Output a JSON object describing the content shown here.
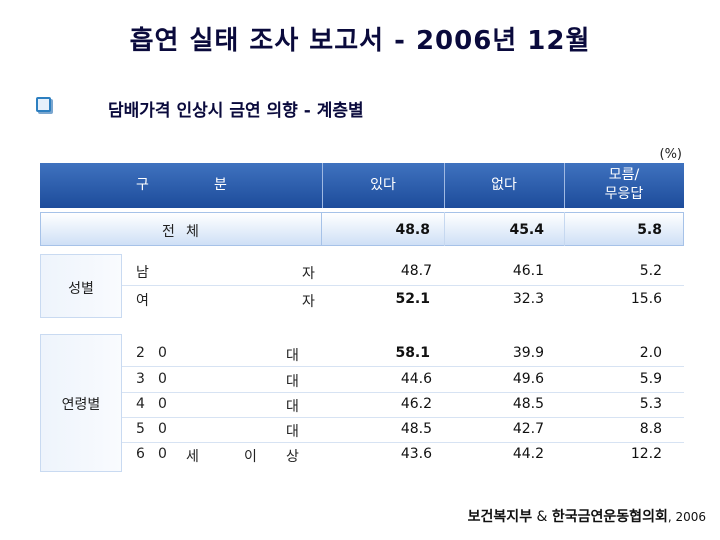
{
  "title": "흡연 실태 조사 보고서 - 2006년 12월",
  "subtitle": "담배가격 인상시 금연 의향 - 계층별",
  "unit": "(%)",
  "header": {
    "gu": "구",
    "bun": "분",
    "col_yes": "있다",
    "col_no": "없다",
    "col_unknown_line1": "모름/",
    "col_unknown_line2": "무응답"
  },
  "total": {
    "label_a": "전",
    "label_b": "체",
    "yes": "48.8",
    "no": "45.4",
    "unknown": "5.8"
  },
  "gender": {
    "group_label": "성별",
    "rows": [
      {
        "a": "남",
        "b": "자",
        "yes": "48.7",
        "no": "46.1",
        "unknown": "5.2"
      },
      {
        "a": "여",
        "b": "자",
        "yes": "52.1",
        "no": "32.3",
        "unknown": "15.6"
      }
    ]
  },
  "age": {
    "group_label": "연령별",
    "rows": [
      {
        "a": "2",
        "a2": "0",
        "mid1": "",
        "mid2": "",
        "b": "대",
        "yes": "58.1",
        "no": "39.9",
        "unknown": "2.0"
      },
      {
        "a": "3",
        "a2": "0",
        "mid1": "",
        "mid2": "",
        "b": "대",
        "yes": "44.6",
        "no": "49.6",
        "unknown": "5.9"
      },
      {
        "a": "4",
        "a2": "0",
        "mid1": "",
        "mid2": "",
        "b": "대",
        "yes": "46.2",
        "no": "48.5",
        "unknown": "5.3"
      },
      {
        "a": "5",
        "a2": "0",
        "mid1": "",
        "mid2": "",
        "b": "대",
        "yes": "48.5",
        "no": "42.7",
        "unknown": "8.8"
      },
      {
        "a": "6",
        "a2": "0",
        "mid1": "세",
        "mid2": "이",
        "b": "상",
        "yes": "43.6",
        "no": "44.2",
        "unknown": "12.2"
      }
    ]
  },
  "source": {
    "org1": "보건복지부",
    "amp": " & ",
    "org2": "한국금연운동협의회",
    "year": ", 2006"
  }
}
